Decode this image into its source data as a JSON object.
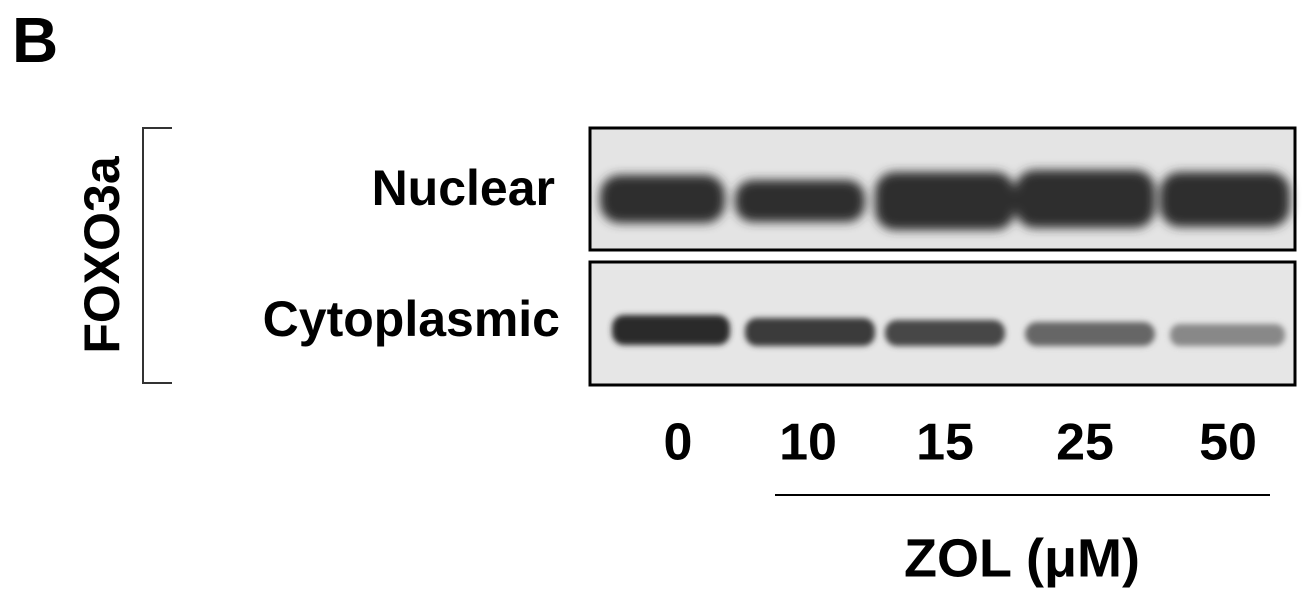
{
  "panel_label": "B",
  "protein": "FOXO3a",
  "fractions": [
    "Nuclear",
    "Cytoplasmic"
  ],
  "lanes": [
    "0",
    "10",
    "15",
    "25",
    "50"
  ],
  "treatment": "ZOL (μM)"
}
